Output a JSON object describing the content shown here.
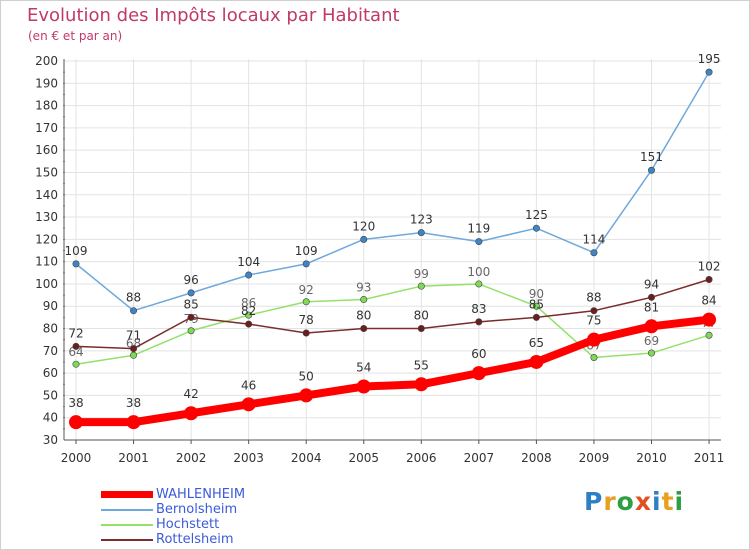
{
  "title": "Evolution des Impôts locaux par Habitant",
  "subtitle": "(en € et par an)",
  "brand": {
    "text": "Proxiti",
    "letters": [
      "P",
      "r",
      "o",
      "x",
      "i",
      "t",
      "i"
    ],
    "letter_colors": [
      "#2e7fc4",
      "#e8a020",
      "#2e9e44",
      "#e05020",
      "#2e7fc4",
      "#e8a020",
      "#2e9e44"
    ]
  },
  "chart_data": {
    "type": "line",
    "title": "Evolution des Impôts locaux par Habitant",
    "subtitle": "(en € et par an)",
    "xlabel": "",
    "ylabel": "",
    "categories": [
      "2000",
      "2001",
      "2002",
      "2003",
      "2004",
      "2005",
      "2006",
      "2007",
      "2008",
      "2009",
      "2010",
      "2011"
    ],
    "ylim": [
      30,
      200
    ],
    "yticks": [
      30,
      40,
      50,
      60,
      70,
      80,
      90,
      100,
      110,
      120,
      130,
      140,
      150,
      160,
      170,
      180,
      190,
      200
    ],
    "grid": true,
    "legend_position": "bottom-left",
    "series": [
      {
        "name": "WAHLENHEIM",
        "color": "#ff0000",
        "label_color": "#333333",
        "emphasis": true,
        "values": [
          38,
          38,
          42,
          46,
          50,
          54,
          55,
          60,
          65,
          75,
          81,
          84
        ]
      },
      {
        "name": "Bernolsheim",
        "color": "#6fa8dc",
        "marker_color": "#3d85c6",
        "label_color": "#333333",
        "values": [
          109,
          88,
          96,
          104,
          109,
          120,
          123,
          119,
          125,
          114,
          151,
          195
        ]
      },
      {
        "name": "Hochstett",
        "color": "#93e06b",
        "marker_color": "#7ed957",
        "label_color": "#666666",
        "values": [
          64,
          68,
          79,
          86,
          92,
          93,
          99,
          100,
          90,
          67,
          69,
          77
        ]
      },
      {
        "name": "Rottelsheim",
        "color": "#7b2c2c",
        "marker_color": "#6b1e1e",
        "label_color": "#333333",
        "values": [
          72,
          71,
          85,
          82,
          78,
          80,
          80,
          83,
          85,
          88,
          94,
          102
        ]
      }
    ]
  }
}
